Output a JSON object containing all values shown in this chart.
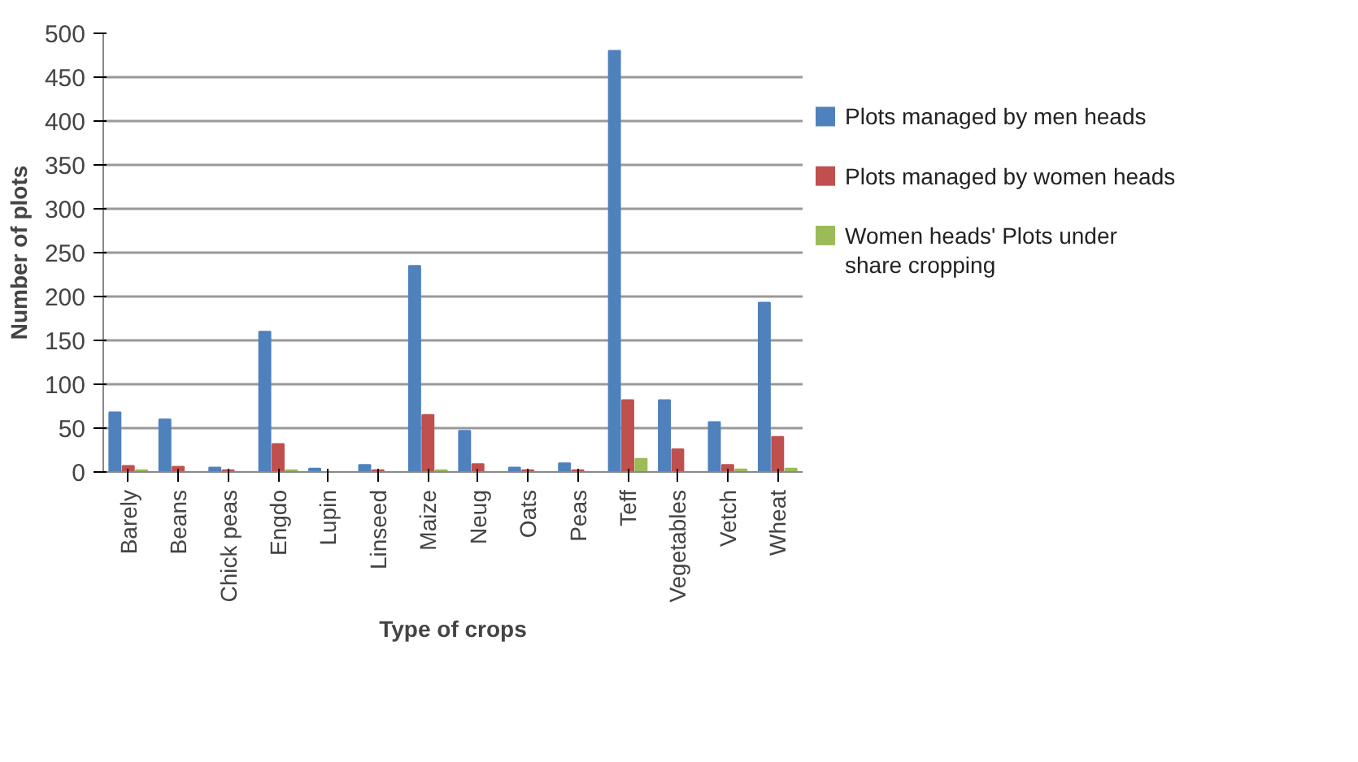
{
  "chart_data": {
    "type": "bar",
    "xlabel": "Type of crops",
    "ylabel": "Number of plots",
    "categories": [
      "Barely",
      "Beans",
      "Chick peas",
      "Engdo",
      "Lupin",
      "Linseed",
      "Maize",
      "Neug",
      "Oats",
      "Peas",
      "Teff",
      "Vegetables",
      "Vetch",
      "Wheat"
    ],
    "series": [
      {
        "name": "Plots managed by men heads",
        "color": "#4f81bd",
        "values": [
          68,
          60,
          5,
          160,
          4,
          8,
          235,
          47,
          5,
          10,
          480,
          82,
          57,
          193
        ]
      },
      {
        "name": "Plots managed by women heads",
        "color": "#c0504d",
        "values": [
          7,
          6,
          2,
          32,
          null,
          2,
          65,
          9,
          2,
          2,
          82,
          26,
          8,
          40
        ]
      },
      {
        "name": "Women heads' Plots under share cropping",
        "color": "#9bbb59",
        "values": [
          2,
          null,
          null,
          2,
          0,
          0,
          2,
          null,
          0,
          0,
          15,
          null,
          3,
          4
        ]
      }
    ],
    "ylim": [
      0,
      500
    ],
    "yticks": [
      0,
      50,
      100,
      150,
      200,
      250,
      300,
      350,
      400,
      450,
      500
    ],
    "grid": "y",
    "legend": "right"
  }
}
